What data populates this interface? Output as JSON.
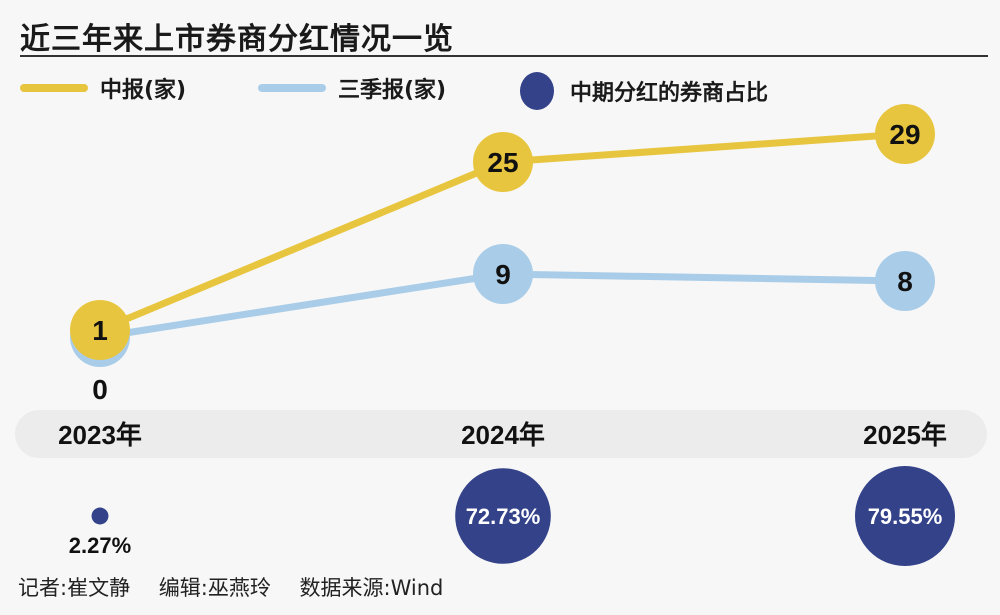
{
  "chart_data": {
    "type": "line",
    "title": "近三年来上市券商分红情况一览",
    "categories": [
      "2023年",
      "2024年",
      "2025年"
    ],
    "series": [
      {
        "name": "中报(家)",
        "values": [
          1,
          25,
          29
        ],
        "color": "#e8c53e"
      },
      {
        "name": "三季报(家)",
        "values": [
          0,
          9,
          8
        ],
        "color": "#a9cde8"
      }
    ],
    "bubbles": {
      "name": "中期分红的券商占比",
      "values": [
        2.27,
        72.73,
        79.55
      ],
      "labels": [
        "2.27%",
        "72.73%",
        "79.55%"
      ],
      "color": "#334289"
    },
    "grid": false,
    "legend": "top-left"
  },
  "footer": {
    "reporter": "记者:崔文静",
    "editor": "编辑:巫燕玲",
    "source": "数据来源:Wind"
  }
}
